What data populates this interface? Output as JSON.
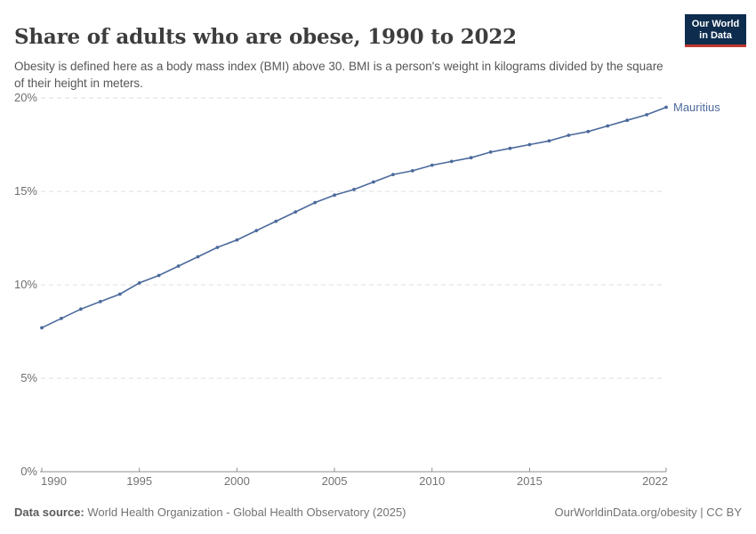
{
  "header": {
    "title": "Share of adults who are obese, 1990 to 2022",
    "subtitle": "Obesity is defined here as a body mass index (BMI) above 30. BMI is a person's weight in kilograms divided by the square of their height in meters.",
    "logo": {
      "line1": "Our World",
      "line2": "in Data",
      "bg_color": "#0e2d4e",
      "accent_color": "#c0362f"
    }
  },
  "chart_data": {
    "type": "line",
    "title": "Share of adults who are obese, 1990 to 2022",
    "x": [
      1990,
      1991,
      1992,
      1993,
      1994,
      1995,
      1996,
      1997,
      1998,
      1999,
      2000,
      2001,
      2002,
      2003,
      2004,
      2005,
      2006,
      2007,
      2008,
      2009,
      2010,
      2011,
      2012,
      2013,
      2014,
      2015,
      2016,
      2017,
      2018,
      2019,
      2020,
      2021,
      2022
    ],
    "series": [
      {
        "name": "Mauritius",
        "color": "#4c6a9c",
        "values": [
          7.7,
          8.2,
          8.7,
          9.1,
          9.5,
          10.1,
          10.5,
          11.0,
          11.5,
          12.0,
          12.4,
          12.9,
          13.4,
          13.9,
          14.4,
          14.8,
          15.1,
          15.5,
          15.9,
          16.1,
          16.4,
          16.6,
          16.8,
          17.1,
          17.3,
          17.5,
          17.7,
          18.0,
          18.2,
          18.5,
          18.8,
          19.1,
          19.5
        ]
      }
    ],
    "xlabel": "",
    "ylabel": "",
    "ylim": [
      0,
      20
    ],
    "xlim": [
      1990,
      2022
    ],
    "yticks": [
      {
        "value": 0,
        "label": "0%"
      },
      {
        "value": 5,
        "label": "5%"
      },
      {
        "value": 10,
        "label": "10%"
      },
      {
        "value": 15,
        "label": "15%"
      },
      {
        "value": 20,
        "label": "20%"
      }
    ],
    "xticks": [
      {
        "value": 1990,
        "label": "1990"
      },
      {
        "value": 1995,
        "label": "1995"
      },
      {
        "value": 2000,
        "label": "2000"
      },
      {
        "value": 2005,
        "label": "2005"
      },
      {
        "value": 2010,
        "label": "2010"
      },
      {
        "value": 2015,
        "label": "2015"
      },
      {
        "value": 2022,
        "label": "2022"
      }
    ],
    "grid": "horizontal-dashed",
    "legend_position": "end-of-line-label",
    "marker": "circle"
  },
  "footer": {
    "datasource_label": "Data source:",
    "datasource_text": " World Health Organization - Global Health Observatory (2025)",
    "right_text": "OurWorldinData.org/obesity | CC BY"
  }
}
